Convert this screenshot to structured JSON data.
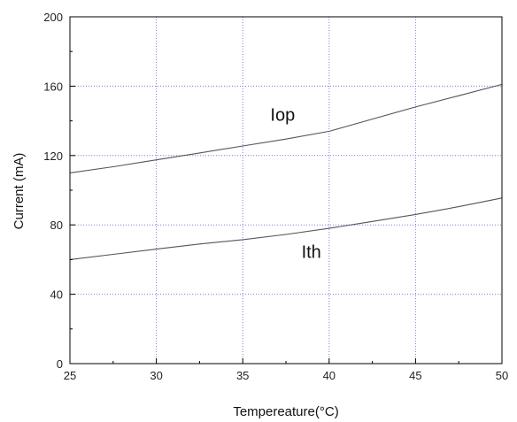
{
  "chart_data": {
    "type": "line",
    "title": "",
    "xlabel": "Tempereature(°C)",
    "ylabel": "Current (mA)",
    "xlim": [
      25,
      50
    ],
    "ylim": [
      0,
      200
    ],
    "xticks": [
      25,
      30,
      35,
      40,
      45,
      50
    ],
    "yticks": [
      0,
      40,
      80,
      120,
      160,
      200
    ],
    "grid": true,
    "grid_color": "#7b7bd8",
    "line_color": "#555555",
    "series": [
      {
        "name": "Iop",
        "x": [
          25,
          27.5,
          30,
          32.5,
          35,
          37.5,
          40,
          42.5,
          45,
          47.5,
          50
        ],
        "y": [
          110,
          113.5,
          117.5,
          121.5,
          125.5,
          129.5,
          134,
          141,
          148,
          154.5,
          161
        ]
      },
      {
        "name": "Ith",
        "x": [
          25,
          27.5,
          30,
          32.5,
          35,
          37.5,
          40,
          42.5,
          45,
          47.5,
          50
        ],
        "y": [
          60,
          63,
          66,
          69,
          71.5,
          74.5,
          78,
          82,
          86,
          90.5,
          95.5
        ]
      }
    ],
    "annotations": [
      {
        "text": "Iop",
        "x": 36.6,
        "y": 140
      },
      {
        "text": "Ith",
        "x": 38.4,
        "y": 61
      }
    ]
  }
}
